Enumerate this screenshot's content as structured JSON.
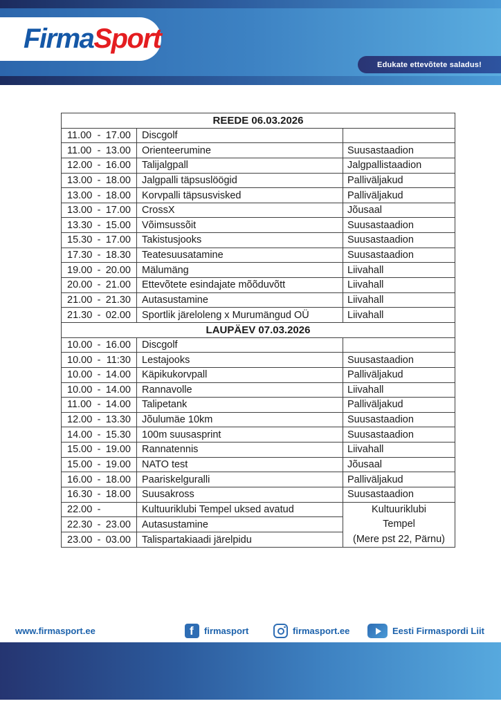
{
  "brand": {
    "logo_part1": "Firma",
    "logo_part2": "Sport",
    "tagline": "Edukate ettevõtete saladus!"
  },
  "colors": {
    "brand_blue": "#1558a7",
    "brand_red": "#e41d20",
    "banner_gradient_left": "#2c66ac",
    "banner_gradient_right": "#5aacdf",
    "stripe_gradient_left": "#1c2b5e",
    "stripe_gradient_right": "#4a9ad6",
    "tagline_pill": "#2a3574",
    "footer_link_blue": "#1b61ab",
    "table_border": "#3f3f3f"
  },
  "schedule": {
    "time_separator": "-",
    "days": [
      {
        "title": "REEDE 06.03.2026",
        "rows": [
          {
            "start": "11.00",
            "end": "17.00",
            "activity": "Discgolf",
            "location": ""
          },
          {
            "start": "11.00",
            "end": "13.00",
            "activity": "Orienteerumine",
            "location": "Suusastaadion"
          },
          {
            "start": "12.00",
            "end": "16.00",
            "activity": "Talijalgpall",
            "location": "Jalgpallistaadion"
          },
          {
            "start": "13.00",
            "end": "18.00",
            "activity": "Jalgpalli täpsuslöögid",
            "location": "Palliväljakud"
          },
          {
            "start": "13.00",
            "end": "18.00",
            "activity": "Korvpalli täpsusvisked",
            "location": "Palliväljakud"
          },
          {
            "start": "13.00",
            "end": "17.00",
            "activity": "CrossX",
            "location": "Jõusaal"
          },
          {
            "start": "13.30",
            "end": "15.00",
            "activity": "Võimsussõit",
            "location": "Suusastaadion"
          },
          {
            "start": "15.30",
            "end": "17.00",
            "activity": "Takistusjooks",
            "location": "Suusastaadion"
          },
          {
            "start": "17.30",
            "end": "18.30",
            "activity": "Teatesuusatamine",
            "location": "Suusastaadion"
          },
          {
            "start": "19.00",
            "end": "20.00",
            "activity": "Mälumäng",
            "location": "Liivahall"
          },
          {
            "start": "20.00",
            "end": "21.00",
            "activity": "Ettevõtete esindajate mõõduvõtt",
            "location": "Liivahall"
          },
          {
            "start": "21.00",
            "end": "21.30",
            "activity": "Autasustamine",
            "location": "Liivahall"
          },
          {
            "start": "21.30",
            "end": "02.00",
            "activity": "Sportlik järeloleng x Murumängud OÜ",
            "location": "Liivahall"
          }
        ]
      },
      {
        "title": "LAUPÄEV 07.03.2026",
        "rows": [
          {
            "start": "10.00",
            "end": "16.00",
            "activity": "Discgolf",
            "location": ""
          },
          {
            "start": "10.00",
            "end": "11:30",
            "activity": "Lestajooks",
            "location": "Suusastaadion"
          },
          {
            "start": "10.00",
            "end": "14.00",
            "activity": "Käpikukorvpall",
            "location": "Palliväljakud"
          },
          {
            "start": "10.00",
            "end": "14.00",
            "activity": "Rannavolle",
            "location": "Liivahall"
          },
          {
            "start": "11.00",
            "end": "14.00",
            "activity": "Talipetank",
            "location": "Palliväljakud"
          },
          {
            "start": "12.00",
            "end": "13.30",
            "activity": "Jõulumäe 10km",
            "location": "Suusastaadion"
          },
          {
            "start": "14.00",
            "end": "15.30",
            "activity": "100m suusasprint",
            "location": "Suusastaadion"
          },
          {
            "start": "15.00",
            "end": "19.00",
            "activity": "Rannatennis",
            "location": "Liivahall"
          },
          {
            "start": "15.00",
            "end": "19.00",
            "activity": "NATO test",
            "location": "Jõusaal"
          },
          {
            "start": "16.00",
            "end": "18.00",
            "activity": "Paariskelguralli",
            "location": "Palliväljakud"
          },
          {
            "start": "16.30",
            "end": "18.00",
            "activity": "Suusakross",
            "location": "Suusastaadion"
          },
          {
            "start": "22.00",
            "end": "",
            "activity": "Kultuuriklubi Tempel uksed avatud",
            "location": null
          },
          {
            "start": "22.30",
            "end": "23.00",
            "activity": "Autasustamine",
            "location": null
          },
          {
            "start": "23.00",
            "end": "03.00",
            "activity": "Talispartakiaadi järelpidu",
            "location": null
          }
        ],
        "merged_venue": {
          "from_row": 11,
          "rowspan": 3,
          "lines": [
            "Kultuuriklubi",
            "Tempel",
            "(Mere pst 22, Pärnu)"
          ]
        }
      }
    ]
  },
  "footer": {
    "website": "www.firmasport.ee",
    "links": [
      {
        "icon": "facebook-icon",
        "label": "firmasport"
      },
      {
        "icon": "instagram-icon",
        "label": "firmasport.ee"
      },
      {
        "icon": "youtube-icon",
        "label": "Eesti Firmaspordi Liit"
      }
    ]
  }
}
